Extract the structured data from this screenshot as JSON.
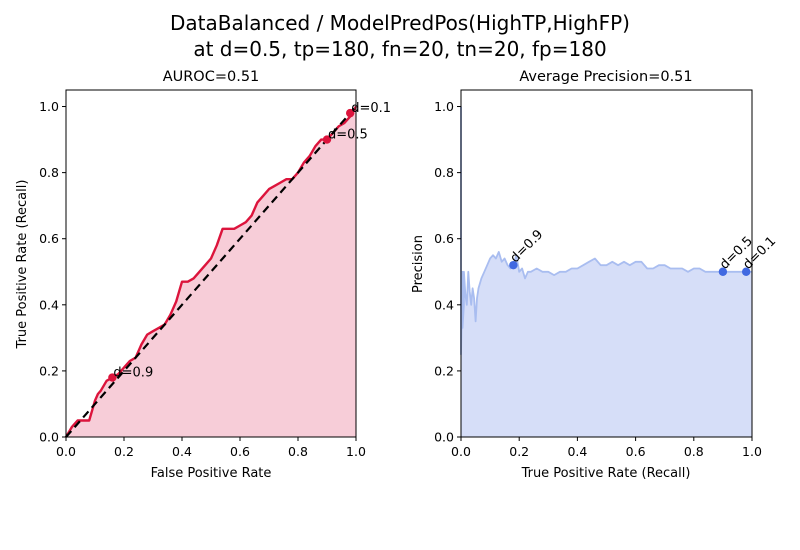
{
  "figure": {
    "title_line1": "DataBalanced / ModelPredPos(HighTP,HighFP)",
    "title_line2": "at d=0.5, tp=180, fn=20, tn=20, fp=180"
  },
  "chart_data": [
    {
      "type": "area",
      "title": "AUROC=0.51",
      "xlabel": "False Positive Rate",
      "ylabel": "True Positive Rate (Recall)",
      "xlim": [
        0,
        1.0
      ],
      "ylim": [
        0,
        1.05
      ],
      "xticks": [
        "0.0",
        "0.2",
        "0.4",
        "0.6",
        "0.8",
        "1.0"
      ],
      "yticks": [
        "0.0",
        "0.2",
        "0.4",
        "0.6",
        "0.8",
        "1.0"
      ],
      "grid": false,
      "colors": {
        "line": "#dc143c",
        "fill": "#f7cdd8",
        "diagonal": "#000000"
      },
      "series": [
        {
          "kind": "roc-curve",
          "x": [
            0.0,
            0.02,
            0.04,
            0.06,
            0.08,
            0.09,
            0.1,
            0.11,
            0.12,
            0.14,
            0.16,
            0.18,
            0.2,
            0.22,
            0.24,
            0.26,
            0.28,
            0.3,
            0.32,
            0.34,
            0.36,
            0.38,
            0.39,
            0.4,
            0.42,
            0.44,
            0.46,
            0.48,
            0.5,
            0.52,
            0.54,
            0.56,
            0.58,
            0.6,
            0.62,
            0.64,
            0.66,
            0.68,
            0.7,
            0.72,
            0.74,
            0.76,
            0.78,
            0.8,
            0.82,
            0.84,
            0.86,
            0.88,
            0.9,
            0.92,
            0.94,
            0.96,
            0.98,
            1.0
          ],
          "y": [
            0.0,
            0.03,
            0.05,
            0.05,
            0.05,
            0.08,
            0.11,
            0.13,
            0.14,
            0.17,
            0.18,
            0.19,
            0.21,
            0.23,
            0.24,
            0.28,
            0.31,
            0.32,
            0.33,
            0.34,
            0.37,
            0.41,
            0.44,
            0.47,
            0.47,
            0.48,
            0.5,
            0.52,
            0.54,
            0.58,
            0.63,
            0.63,
            0.63,
            0.64,
            0.65,
            0.67,
            0.71,
            0.73,
            0.75,
            0.76,
            0.77,
            0.78,
            0.78,
            0.8,
            0.83,
            0.85,
            0.88,
            0.9,
            0.9,
            0.92,
            0.94,
            0.95,
            0.97,
            1.0
          ]
        },
        {
          "kind": "chance-diagonal",
          "x": [
            0,
            1
          ],
          "y": [
            0,
            1
          ]
        }
      ],
      "threshold_points": [
        {
          "label": "d=0.9",
          "x": 0.16,
          "y": 0.18
        },
        {
          "label": "d=0.5",
          "x": 0.9,
          "y": 0.9
        },
        {
          "label": "d=0.1",
          "x": 0.98,
          "y": 0.98
        }
      ]
    },
    {
      "type": "area",
      "title": "Average Precision=0.51",
      "xlabel": "True Positive Rate (Recall)",
      "ylabel": "Precision",
      "xlim": [
        0,
        1.0
      ],
      "ylim": [
        0,
        1.05
      ],
      "xticks": [
        "0.0",
        "0.2",
        "0.4",
        "0.6",
        "0.8",
        "1.0"
      ],
      "yticks": [
        "0.0",
        "0.2",
        "0.4",
        "0.6",
        "0.8",
        "1.0"
      ],
      "grid": false,
      "colors": {
        "line": "#a9bdf0",
        "fill": "#d6def8",
        "point": "#4169e1"
      },
      "series": [
        {
          "kind": "pr-curve",
          "x": [
            0.0,
            0.0,
            0.005,
            0.005,
            0.01,
            0.01,
            0.015,
            0.02,
            0.025,
            0.03,
            0.035,
            0.04,
            0.045,
            0.05,
            0.055,
            0.06,
            0.07,
            0.08,
            0.09,
            0.1,
            0.11,
            0.12,
            0.13,
            0.14,
            0.15,
            0.16,
            0.17,
            0.18,
            0.19,
            0.2,
            0.21,
            0.22,
            0.23,
            0.24,
            0.26,
            0.28,
            0.3,
            0.32,
            0.34,
            0.36,
            0.38,
            0.4,
            0.42,
            0.44,
            0.46,
            0.48,
            0.5,
            0.52,
            0.54,
            0.56,
            0.58,
            0.6,
            0.62,
            0.64,
            0.66,
            0.68,
            0.7,
            0.72,
            0.74,
            0.76,
            0.78,
            0.8,
            0.82,
            0.84,
            0.86,
            0.88,
            0.9,
            0.92,
            0.94,
            0.96,
            0.98,
            1.0
          ],
          "y": [
            1.0,
            0.25,
            0.5,
            0.33,
            0.4,
            0.5,
            0.43,
            0.4,
            0.5,
            0.44,
            0.4,
            0.45,
            0.42,
            0.35,
            0.42,
            0.45,
            0.48,
            0.5,
            0.52,
            0.54,
            0.55,
            0.54,
            0.56,
            0.53,
            0.54,
            0.52,
            0.51,
            0.52,
            0.55,
            0.5,
            0.51,
            0.48,
            0.5,
            0.5,
            0.51,
            0.5,
            0.5,
            0.49,
            0.5,
            0.5,
            0.51,
            0.51,
            0.52,
            0.53,
            0.54,
            0.52,
            0.52,
            0.53,
            0.52,
            0.53,
            0.52,
            0.53,
            0.53,
            0.51,
            0.51,
            0.52,
            0.52,
            0.51,
            0.51,
            0.51,
            0.5,
            0.51,
            0.51,
            0.5,
            0.5,
            0.5,
            0.5,
            0.5,
            0.5,
            0.5,
            0.5,
            0.5
          ]
        }
      ],
      "threshold_points": [
        {
          "label": "d=0.9",
          "x": 0.18,
          "y": 0.52
        },
        {
          "label": "d=0.5",
          "x": 0.9,
          "y": 0.5
        },
        {
          "label": "d=0.1",
          "x": 0.98,
          "y": 0.5
        }
      ]
    }
  ]
}
